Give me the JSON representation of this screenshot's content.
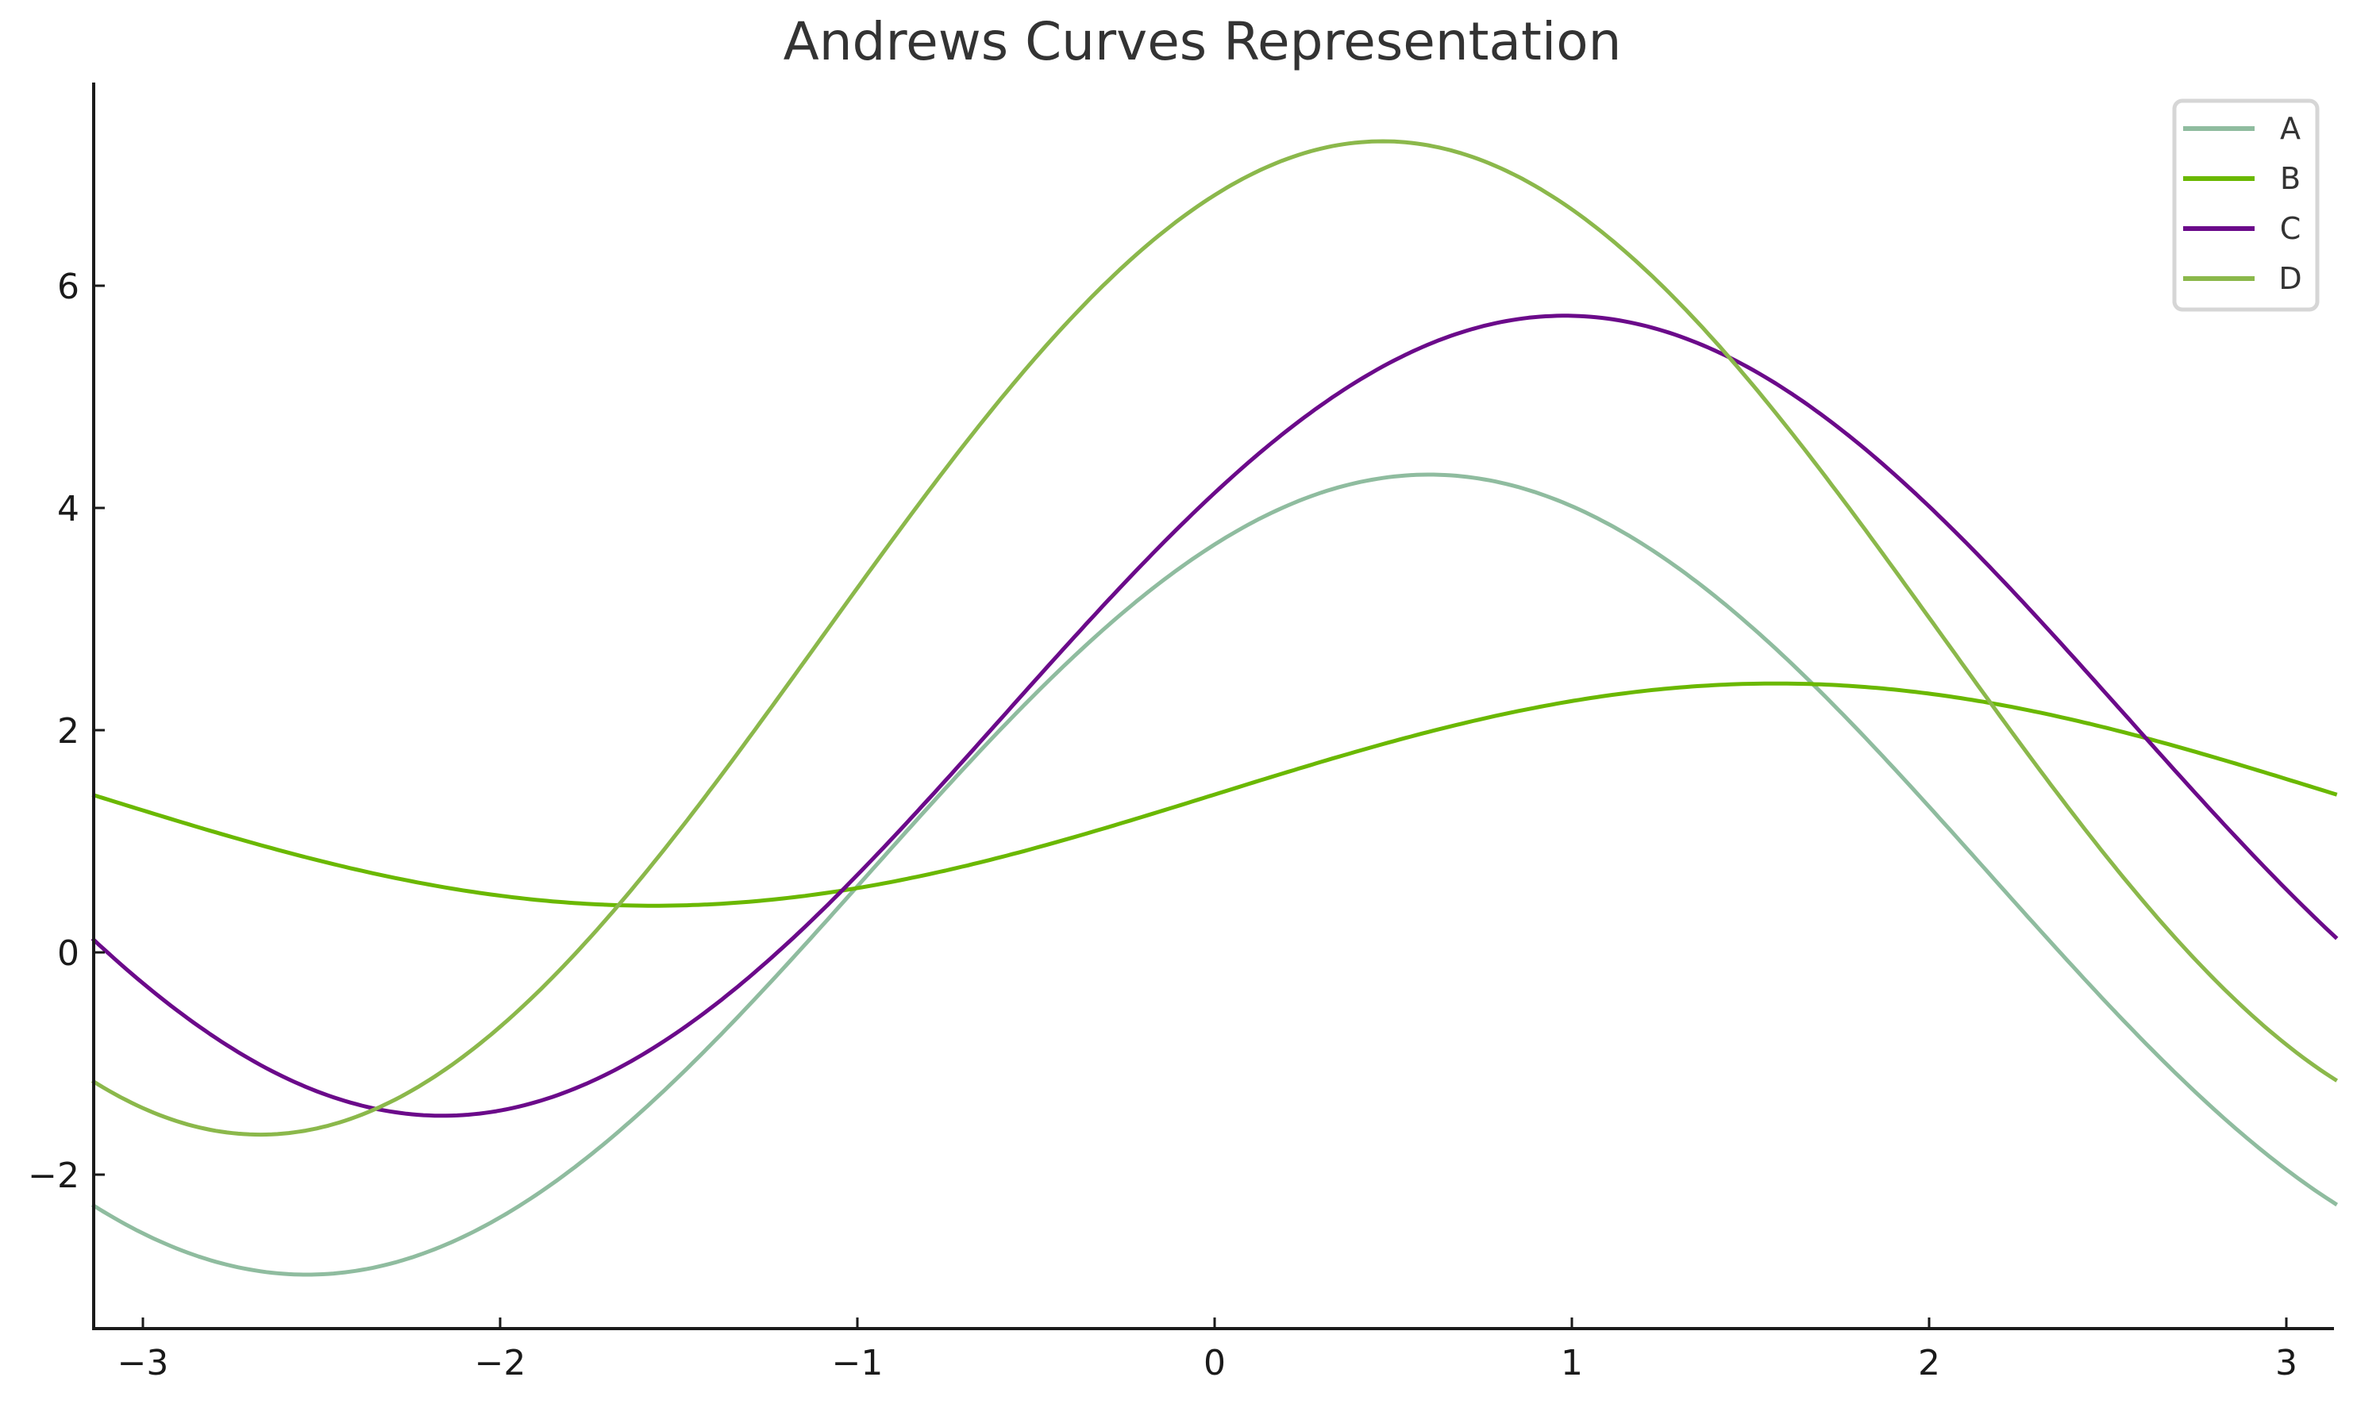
{
  "title": "Andrews Curves Representation",
  "colors": {
    "A": "#8fbc9f",
    "B": "#6ab800",
    "C": "#6b0a8a",
    "D": "#8bb84b",
    "axis": "#1a1a1a",
    "legend_border": "#d6d6d6"
  },
  "legend": [
    {
      "label": "A",
      "color": "#8fbc9f"
    },
    {
      "label": "B",
      "color": "#6ab800"
    },
    {
      "label": "C",
      "color": "#6b0a8a"
    },
    {
      "label": "D",
      "color": "#8bb84b"
    }
  ],
  "chart_data": {
    "type": "line",
    "title": "Andrews Curves Representation",
    "xlabel": "",
    "ylabel": "",
    "xlim": [
      -3.1416,
      3.1416
    ],
    "ylim": [
      -3.4,
      7.8
    ],
    "grid": false,
    "legend_position": "upper right",
    "x_ticks": [
      -3,
      -2,
      -1,
      0,
      1,
      2,
      3
    ],
    "x_tick_labels": [
      "−3",
      "−2",
      "−1",
      "0",
      "1",
      "2",
      "3"
    ],
    "y_ticks": [
      -2,
      0,
      2,
      4,
      6
    ],
    "y_tick_labels": [
      "−2",
      "0",
      "2",
      "4",
      "6"
    ],
    "series": [
      {
        "name": "A",
        "model": {
          "offset": 0.7,
          "amplitude": 3.6,
          "phase": 0.6
        },
        "key_points": {
          "at_minus_pi": -2.28,
          "min": [
            -2.56,
            -2.9
          ],
          "max": [
            0.6,
            4.31
          ],
          "at_zero": 3.67,
          "at_pi": -2.28
        }
      },
      {
        "name": "B",
        "model": {
          "offset": 1.42,
          "amplitude": 1.0,
          "phase": 1.57
        },
        "key_points": {
          "at_minus_pi": 1.42,
          "min": [
            -1.6,
            0.42
          ],
          "max": [
            1.55,
            2.42
          ],
          "at_zero": 1.42,
          "at_pi": 1.42
        }
      },
      {
        "name": "C",
        "model": {
          "offset": 2.13,
          "amplitude": 3.6,
          "phase": 0.98
        },
        "key_points": {
          "at_minus_pi": 0.12,
          "min": [
            -2.17,
            -1.47
          ],
          "max": [
            0.98,
            5.73
          ],
          "at_zero": 4.13,
          "at_pi": 0.12
        }
      },
      {
        "name": "D",
        "model": {
          "offset": 2.83,
          "amplitude": 4.47,
          "phase": 0.47
        },
        "key_points": {
          "at_minus_pi": -1.17,
          "min": [
            -2.67,
            -1.64
          ],
          "max": [
            0.47,
            7.3
          ],
          "at_zero": 6.8,
          "at_pi": -1.17
        }
      }
    ]
  }
}
